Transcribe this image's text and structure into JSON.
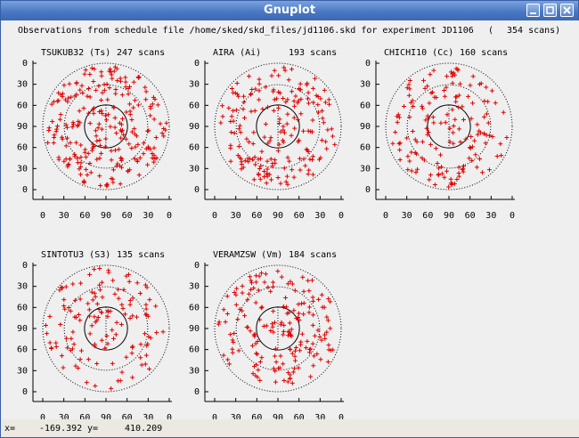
{
  "window": {
    "title": "Gnuplot"
  },
  "plot": {
    "header_text": "Observations from schedule file /home/sked/skd_files/jd1106.skd for experiment JD1106",
    "header_paren_open": "(",
    "header_total": "354 scans)",
    "y_ticks": [
      "0",
      "30",
      "60",
      "90",
      "60",
      "30",
      "0"
    ],
    "x_ticks": [
      "0",
      "30",
      "60",
      "90",
      "60",
      "30",
      "0"
    ],
    "panels": [
      {
        "label": "TSUKUB32 (Ts)",
        "count": "247 scans",
        "scans": 247,
        "seed": 11
      },
      {
        "label": "AIRA (Ai)",
        "count": "193 scans",
        "scans": 193,
        "seed": 23
      },
      {
        "label": "CHICHI10 (Cc)",
        "count": "160 scans",
        "scans": 160,
        "seed": 37
      },
      {
        "label": "SINTOTU3 (S3)",
        "count": "135 scans",
        "scans": 135,
        "seed": 51
      },
      {
        "label": "VERAMZSW (Vm)",
        "count": "184 scans",
        "scans": 184,
        "seed": 67
      }
    ],
    "marker_color": "#e00000"
  },
  "status": {
    "x_label": "x=",
    "x_value": "-169.392",
    "y_label": "y=",
    "y_value": "410.209"
  }
}
